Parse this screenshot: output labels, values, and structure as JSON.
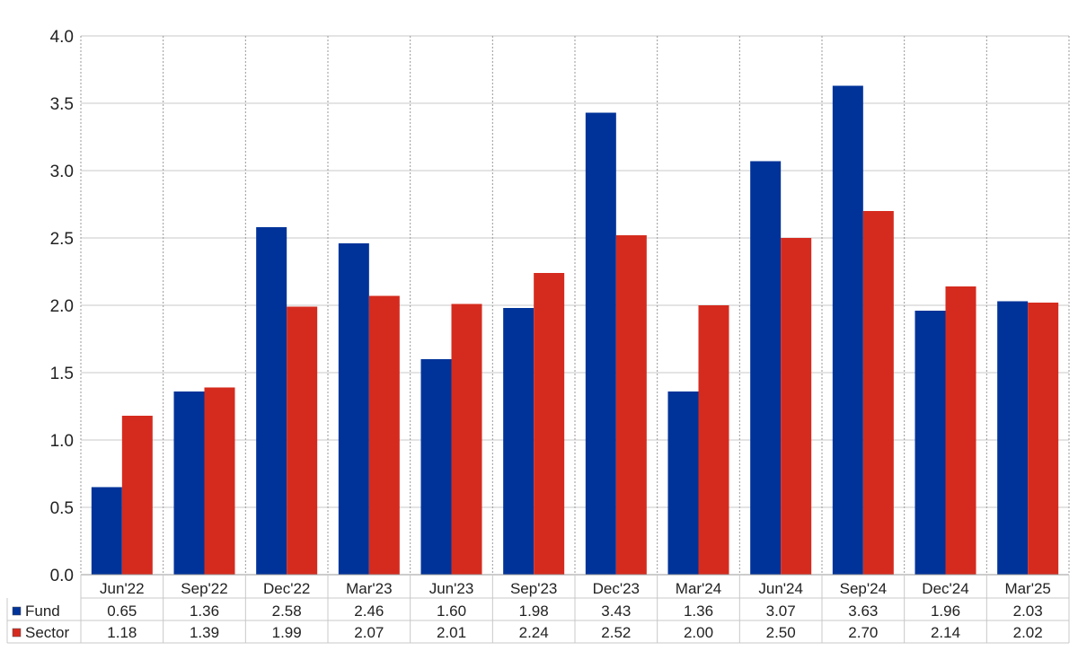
{
  "chart_data": {
    "type": "bar",
    "categories": [
      "Jun'22",
      "Sep'22",
      "Dec'22",
      "Mar'23",
      "Jun'23",
      "Sep'23",
      "Dec'23",
      "Mar'24",
      "Jun'24",
      "Sep'24",
      "Dec'24",
      "Mar'25"
    ],
    "series": [
      {
        "name": "Fund",
        "color": "#003399",
        "values": [
          0.65,
          1.36,
          2.58,
          2.46,
          1.6,
          1.98,
          3.43,
          1.36,
          3.07,
          3.63,
          1.96,
          2.03
        ],
        "labels": [
          "0.65",
          "1.36",
          "2.58",
          "2.46",
          "1.60",
          "1.98",
          "3.43",
          "1.36",
          "3.07",
          "3.63",
          "1.96",
          "2.03"
        ]
      },
      {
        "name": "Sector",
        "color": "#D52B1E",
        "values": [
          1.18,
          1.39,
          1.99,
          2.07,
          2.01,
          2.24,
          2.52,
          2.0,
          2.5,
          2.7,
          2.14,
          2.02
        ],
        "labels": [
          "1.18",
          "1.39",
          "1.99",
          "2.07",
          "2.01",
          "2.24",
          "2.52",
          "2.00",
          "2.50",
          "2.70",
          "2.14",
          "2.02"
        ]
      }
    ],
    "title": "",
    "xlabel": "",
    "ylabel": "",
    "ylim": [
      0,
      4.0
    ],
    "yticks": [
      "0.0",
      "0.5",
      "1.0",
      "1.5",
      "2.0",
      "2.5",
      "3.0",
      "3.5",
      "4.0"
    ],
    "grid": true,
    "legend": "data-table-left"
  }
}
